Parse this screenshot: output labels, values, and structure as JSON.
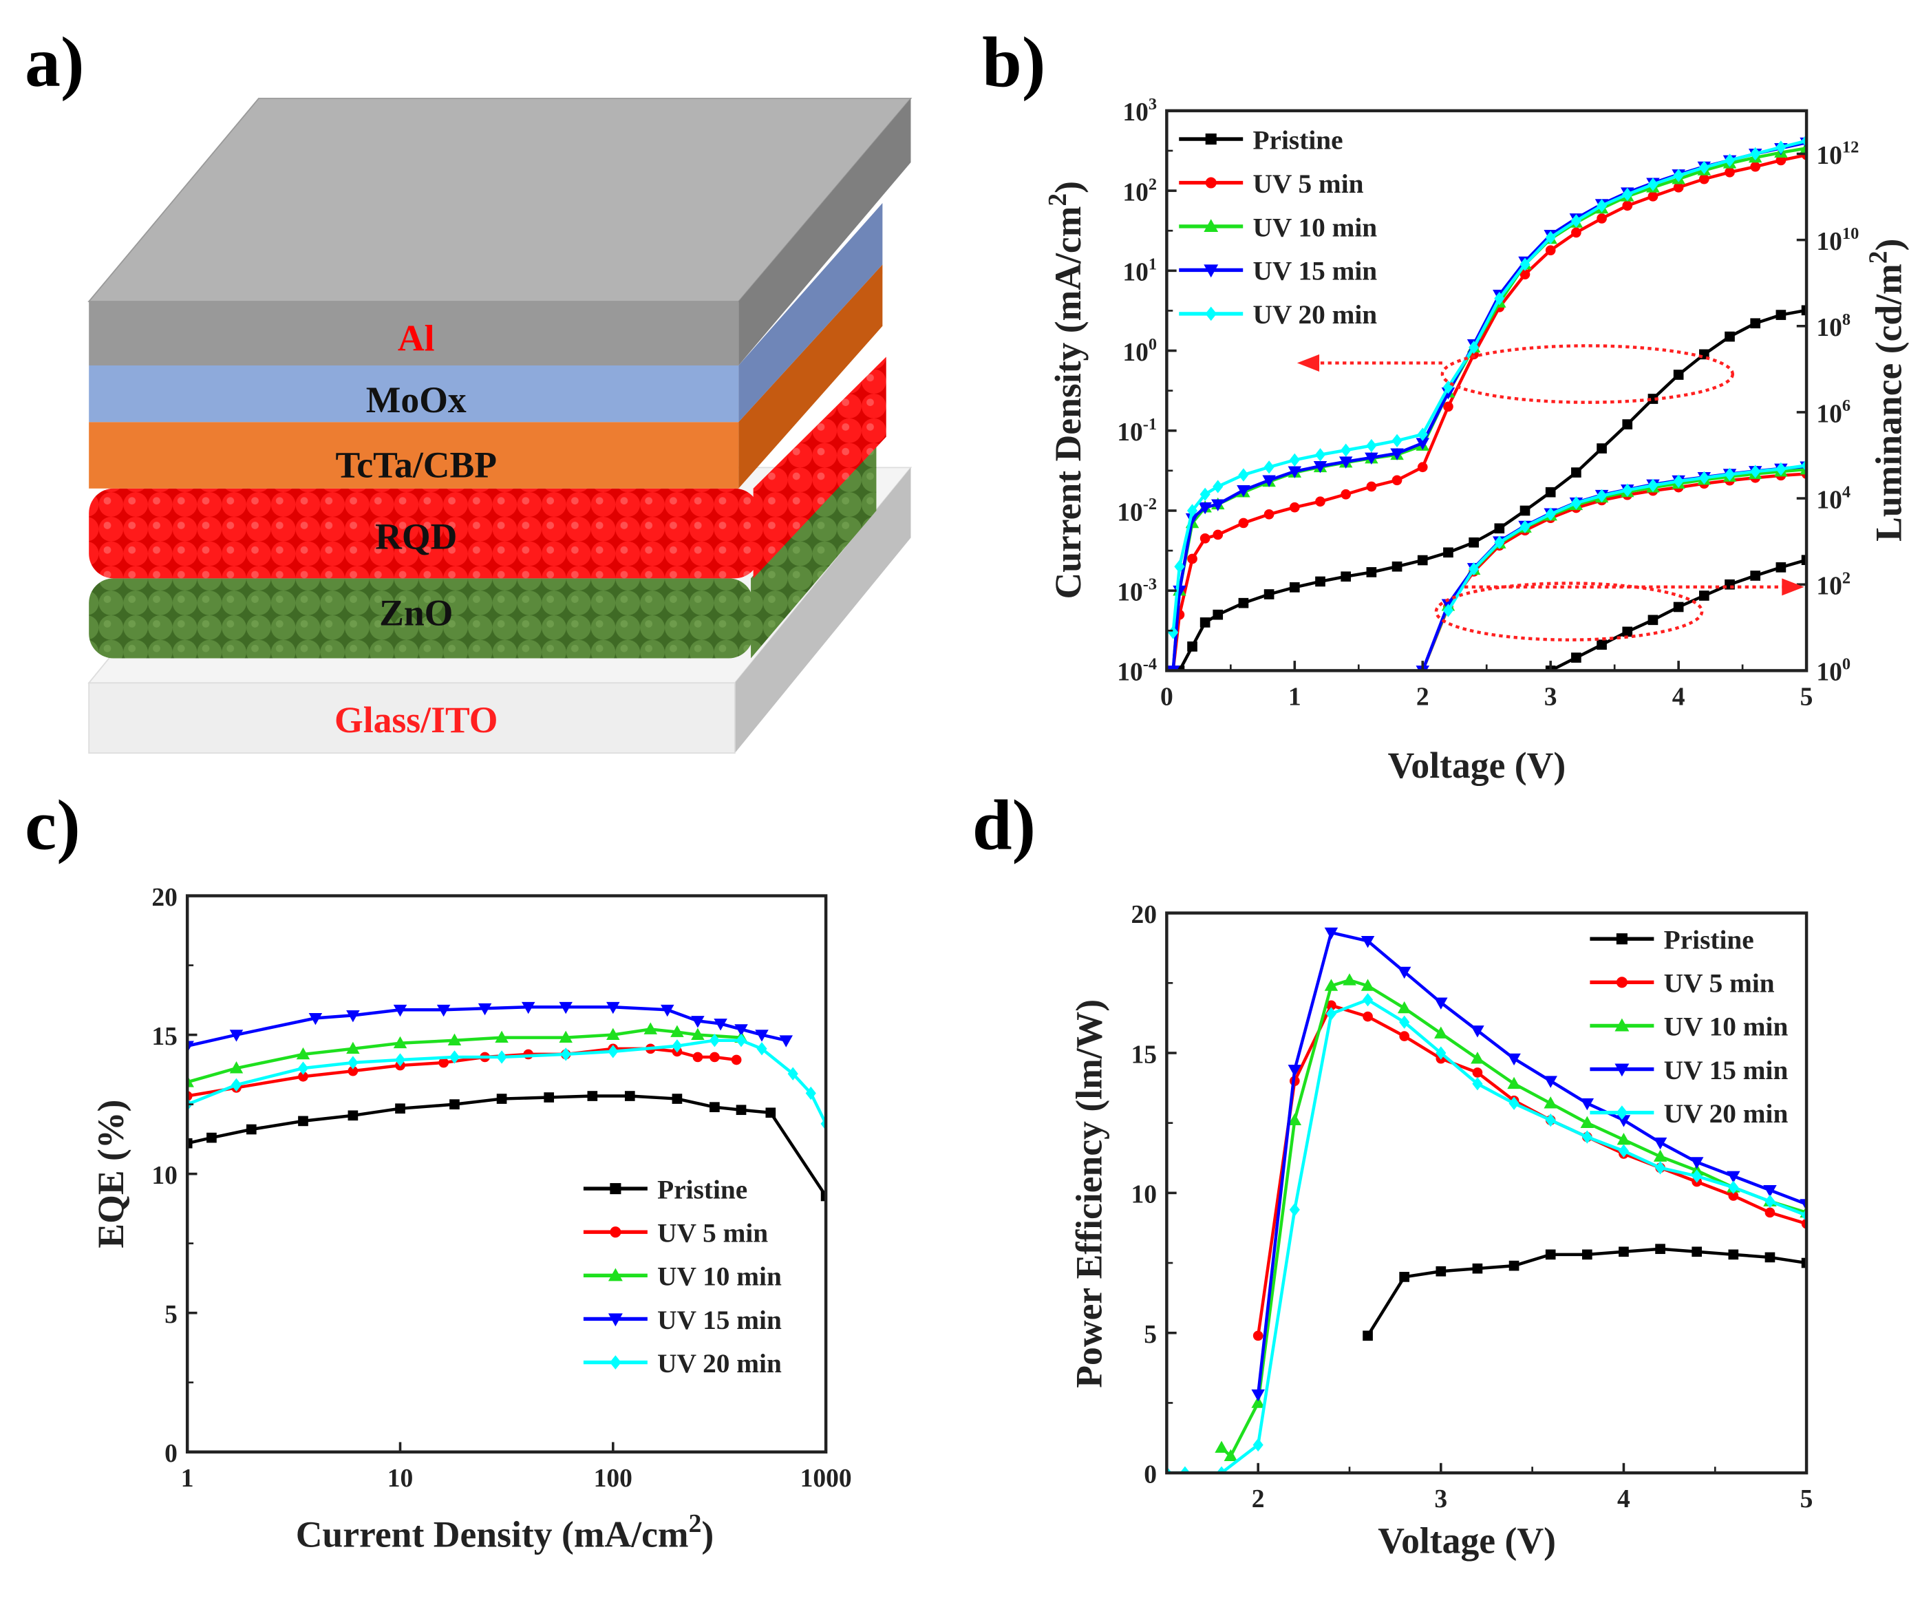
{
  "panel_labels": [
    "a)",
    "b)",
    "c)",
    "d)"
  ],
  "device_stack": {
    "layers": [
      {
        "name": "Al",
        "color": "#a6a6a6",
        "text_color": "#ff0000"
      },
      {
        "name": "MoOx",
        "color": "#8eaadb",
        "text_color": "#111111"
      },
      {
        "name": "TcTa/CBP",
        "color": "#ed7d31",
        "text_color": "#111111"
      },
      {
        "name": "RQD",
        "color": "#ff0000",
        "text_color": "#111111"
      },
      {
        "name": "ZnO",
        "color": "#548235",
        "text_color": "#111111"
      },
      {
        "name": "Glass/ITO",
        "color": "#eeeeee",
        "text_color": "#ff2020"
      }
    ]
  },
  "series_styles": [
    {
      "name": "Pristine",
      "color": "#000000",
      "marker": "square"
    },
    {
      "name": "UV 5 min",
      "color": "#ff0000",
      "marker": "circle"
    },
    {
      "name": "UV 10 min",
      "color": "#1ee01e",
      "marker": "triangle-up"
    },
    {
      "name": "UV 15 min",
      "color": "#0000ff",
      "marker": "triangle-down"
    },
    {
      "name": "UV 20 min",
      "color": "#00ffff",
      "marker": "diamond"
    }
  ],
  "chart_data": [
    {
      "id": "b",
      "type": "line",
      "xlabel": "Voltage (V)",
      "ylabel": "Current Density (mA/cm2)",
      "ylabel_right": "Luminance (cd/m2)",
      "xlim": [
        0,
        5
      ],
      "ylim_log10": [
        -4,
        3
      ],
      "ylim_right_log10": [
        0,
        13
      ],
      "xticks": [
        "0",
        "1",
        "2",
        "3",
        "4",
        "5"
      ],
      "yticks": [
        "10^-4",
        "10^-3",
        "10^-2",
        "10^-1",
        "10^0",
        "10^1",
        "10^2",
        "10^3"
      ],
      "yticks_right": [
        "10^0",
        "10^2",
        "10^4",
        "10^6",
        "10^8",
        "10^10",
        "10^12"
      ],
      "legend": "top-left",
      "annotations": [
        "dotted ellipse with left arrow: current density curves",
        "dotted ellipse with right arrow: luminance curves"
      ],
      "x": [
        0.05,
        0.1,
        0.2,
        0.3,
        0.4,
        0.6,
        0.8,
        1.0,
        1.2,
        1.4,
        1.6,
        1.8,
        2.0,
        2.2,
        2.4,
        2.6,
        2.8,
        3.0,
        3.2,
        3.4,
        3.6,
        3.8,
        4.0,
        4.2,
        4.4,
        4.6,
        4.8,
        5.0
      ],
      "series": [
        {
          "name": "Pristine",
          "axis": "left",
          "values": [
            null,
            0.0001,
            0.0002,
            0.0004,
            0.0005,
            0.0007,
            0.0009,
            0.0011,
            0.0013,
            0.0015,
            0.0017,
            0.002,
            0.0024,
            0.003,
            0.004,
            0.006,
            0.01,
            0.017,
            0.03,
            0.06,
            0.12,
            0.25,
            0.5,
            0.9,
            1.5,
            2.2,
            2.8,
            3.2
          ]
        },
        {
          "name": "UV 5 min",
          "axis": "left",
          "values": [
            0.0001,
            0.0005,
            0.0025,
            0.0045,
            0.005,
            0.007,
            0.009,
            0.011,
            0.013,
            0.016,
            0.02,
            0.024,
            0.035,
            0.2,
            0.9,
            3.5,
            9,
            18,
            30,
            45,
            65,
            85,
            110,
            140,
            170,
            200,
            240,
            280
          ]
        },
        {
          "name": "UV 10 min",
          "axis": "left",
          "values": [
            0.0001,
            0.001,
            0.007,
            0.011,
            0.012,
            0.017,
            0.023,
            0.03,
            0.035,
            0.04,
            0.045,
            0.05,
            0.065,
            0.3,
            1.1,
            4,
            12,
            25,
            40,
            60,
            85,
            110,
            140,
            180,
            220,
            260,
            300,
            340
          ]
        },
        {
          "name": "UV 15 min",
          "axis": "left",
          "values": [
            0.0001,
            0.001,
            0.008,
            0.011,
            0.012,
            0.018,
            0.024,
            0.031,
            0.036,
            0.041,
            0.046,
            0.052,
            0.07,
            0.3,
            1.2,
            5,
            13,
            28,
            45,
            68,
            95,
            125,
            160,
            200,
            240,
            290,
            340,
            400
          ]
        },
        {
          "name": "UV 20 min",
          "axis": "left",
          "values": [
            0.0003,
            0.002,
            0.01,
            0.016,
            0.02,
            0.028,
            0.035,
            0.043,
            0.05,
            0.057,
            0.065,
            0.075,
            0.09,
            0.35,
            1.1,
            4.5,
            12,
            26,
            42,
            65,
            90,
            120,
            155,
            195,
            240,
            290,
            350,
            420
          ]
        },
        {
          "name": "Pristine",
          "axis": "right",
          "values": [
            null,
            null,
            null,
            null,
            null,
            null,
            null,
            null,
            null,
            null,
            null,
            null,
            null,
            null,
            null,
            null,
            null,
            1,
            2,
            4,
            8,
            15,
            30,
            55,
            100,
            160,
            250,
            370
          ]
        },
        {
          "name": "UV 5 min",
          "axis": "right",
          "values": [
            null,
            null,
            null,
            null,
            null,
            null,
            null,
            null,
            null,
            null,
            null,
            null,
            1,
            30,
            200,
            800,
            1800,
            3500,
            6000,
            9000,
            12000,
            15000,
            18000,
            22000,
            26000,
            30000,
            34000,
            37000
          ]
        },
        {
          "name": "UV 10 min",
          "axis": "right",
          "values": [
            null,
            null,
            null,
            null,
            null,
            null,
            null,
            null,
            null,
            null,
            null,
            null,
            1,
            32,
            220,
            900,
            2100,
            4000,
            7000,
            10500,
            14000,
            18000,
            22000,
            27000,
            32000,
            37000,
            42000,
            47000
          ]
        },
        {
          "name": "UV 15 min",
          "axis": "right",
          "values": [
            null,
            null,
            null,
            null,
            null,
            null,
            null,
            null,
            null,
            null,
            null,
            null,
            1,
            35,
            240,
            1000,
            2300,
            4500,
            8000,
            12000,
            16000,
            21000,
            26000,
            31000,
            37000,
            43000,
            49000,
            55000
          ]
        },
        {
          "name": "UV 20 min",
          "axis": "right",
          "values": [
            null,
            null,
            null,
            null,
            null,
            null,
            null,
            null,
            null,
            null,
            null,
            null,
            null,
            25,
            230,
            950,
            2200,
            4300,
            7800,
            11500,
            15500,
            20000,
            25000,
            30000,
            36000,
            42000,
            48000,
            58000
          ]
        }
      ]
    },
    {
      "id": "c",
      "type": "line",
      "xlabel": "Current Density (mA/cm2)",
      "ylabel": "EQE (%)",
      "xlim": [
        1,
        1000
      ],
      "xscale": "log",
      "ylim": [
        0,
        20
      ],
      "xticks": [
        "1",
        "10",
        "100",
        "1000"
      ],
      "yticks": [
        "0",
        "5",
        "10",
        "15",
        "20"
      ],
      "legend": "bottom-right",
      "series": [
        {
          "name": "Pristine",
          "x": [
            1,
            1.3,
            2,
            3.5,
            6,
            10,
            18,
            30,
            50,
            80,
            120,
            200,
            300,
            400,
            550,
            1000
          ],
          "values": [
            11.1,
            11.3,
            11.6,
            11.9,
            12.1,
            12.35,
            12.5,
            12.7,
            12.75,
            12.8,
            12.8,
            12.7,
            12.4,
            12.3,
            12.2,
            9.2
          ]
        },
        {
          "name": "UV 5 min",
          "x": [
            1,
            1.7,
            3.5,
            6,
            10,
            16,
            25,
            40,
            60,
            100,
            150,
            200,
            250,
            300,
            380
          ],
          "values": [
            12.8,
            13.1,
            13.5,
            13.7,
            13.9,
            14.0,
            14.2,
            14.3,
            14.3,
            14.5,
            14.5,
            14.4,
            14.2,
            14.2,
            14.1
          ]
        },
        {
          "name": "UV 10 min",
          "x": [
            1,
            1.7,
            3.5,
            6,
            10,
            18,
            30,
            60,
            100,
            150,
            200,
            250,
            400
          ],
          "values": [
            13.3,
            13.8,
            14.3,
            14.5,
            14.7,
            14.8,
            14.9,
            14.9,
            15.0,
            15.2,
            15.1,
            15.0,
            14.9
          ]
        },
        {
          "name": "UV 15 min",
          "x": [
            1,
            1.7,
            4,
            6,
            10,
            16,
            25,
            40,
            60,
            100,
            180,
            250,
            320,
            400,
            500,
            650
          ],
          "values": [
            14.6,
            15.0,
            15.6,
            15.7,
            15.9,
            15.9,
            15.95,
            16.0,
            16.0,
            16.0,
            15.9,
            15.5,
            15.4,
            15.2,
            15.0,
            14.8
          ]
        },
        {
          "name": "UV 20 min",
          "x": [
            1,
            1.7,
            3.5,
            6,
            10,
            18,
            30,
            60,
            100,
            200,
            300,
            400,
            500,
            700,
            850,
            1000
          ],
          "values": [
            12.5,
            13.2,
            13.8,
            14.0,
            14.1,
            14.2,
            14.2,
            14.3,
            14.4,
            14.6,
            14.8,
            14.8,
            14.5,
            13.6,
            12.9,
            11.8
          ]
        }
      ]
    },
    {
      "id": "d",
      "type": "line",
      "xlabel": "Voltage (V)",
      "ylabel": "Power Efficiency (lm/W)",
      "xlim": [
        1.5,
        5
      ],
      "ylim": [
        0,
        20
      ],
      "xticks": [
        "2",
        "3",
        "4",
        "5"
      ],
      "yticks": [
        "0",
        "5",
        "10",
        "15",
        "20"
      ],
      "legend": "top-right",
      "series": [
        {
          "name": "Pristine",
          "x": [
            2.6,
            2.8,
            3.0,
            3.2,
            3.4,
            3.6,
            3.8,
            4.0,
            4.2,
            4.4,
            4.6,
            4.8,
            5.0
          ],
          "values": [
            4.9,
            7.0,
            7.2,
            7.3,
            7.4,
            7.8,
            7.8,
            7.9,
            8.0,
            7.9,
            7.8,
            7.7,
            7.5
          ]
        },
        {
          "name": "UV 5 min",
          "x": [
            2.0,
            2.2,
            2.4,
            2.6,
            2.8,
            3.0,
            3.2,
            3.4,
            3.6,
            3.8,
            4.0,
            4.2,
            4.4,
            4.6,
            4.8,
            5.0
          ],
          "values": [
            4.9,
            14.0,
            16.7,
            16.3,
            15.6,
            14.8,
            14.3,
            13.3,
            12.6,
            12.0,
            11.4,
            10.9,
            10.4,
            9.9,
            9.3,
            8.9
          ]
        },
        {
          "name": "UV 10 min",
          "x": [
            1.8,
            1.85,
            2.0,
            2.2,
            2.4,
            2.5,
            2.6,
            2.8,
            3.0,
            3.2,
            3.4,
            3.6,
            3.8,
            4.0,
            4.2,
            4.4,
            4.6,
            4.8,
            5.0
          ],
          "values": [
            0.9,
            0.6,
            2.5,
            12.6,
            17.4,
            17.6,
            17.4,
            16.6,
            15.7,
            14.8,
            13.9,
            13.2,
            12.5,
            11.9,
            11.3,
            10.8,
            10.2,
            9.7,
            9.3
          ]
        },
        {
          "name": "UV 15 min",
          "x": [
            2.0,
            2.2,
            2.4,
            2.6,
            2.8,
            3.0,
            3.2,
            3.4,
            3.6,
            3.8,
            4.0,
            4.2,
            4.4,
            4.6,
            4.8,
            5.0
          ],
          "values": [
            2.8,
            14.4,
            19.3,
            19.0,
            17.9,
            16.8,
            15.8,
            14.8,
            14.0,
            13.2,
            12.6,
            11.8,
            11.1,
            10.6,
            10.1,
            9.6
          ]
        },
        {
          "name": "UV 20 min",
          "x": [
            1.5,
            1.6,
            1.8,
            2.0,
            2.2,
            2.4,
            2.6,
            2.8,
            3.0,
            3.2,
            3.4,
            3.6,
            3.8,
            4.0,
            4.2,
            4.4,
            4.6,
            4.8,
            5.0
          ],
          "values": [
            0,
            0,
            0,
            1.0,
            9.4,
            16.4,
            16.9,
            16.1,
            15.0,
            13.9,
            13.2,
            12.6,
            12.0,
            11.5,
            10.9,
            10.6,
            10.2,
            9.7,
            9.2
          ]
        }
      ]
    }
  ]
}
